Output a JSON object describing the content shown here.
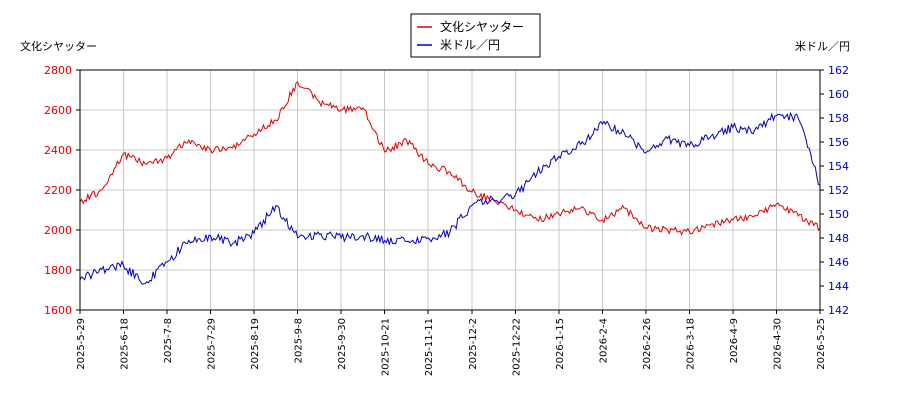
{
  "chart_data": {
    "type": "line",
    "left_axis_label": "文化シヤッター",
    "right_axis_label": "米ドル／円",
    "colors": {
      "left": "#dd0000",
      "right": "#0000bb"
    },
    "y_left": {
      "min": 1600,
      "max": 2800,
      "ticks": [
        "1600",
        "1800",
        "2000",
        "2200",
        "2400",
        "2600",
        "2800"
      ]
    },
    "y_right": {
      "min": 142,
      "max": 162,
      "ticks": [
        "142",
        "144",
        "146",
        "148",
        "150",
        "152",
        "154",
        "156",
        "158",
        "160",
        "162"
      ]
    },
    "x_tick_labels": [
      "2025-5-29",
      "2025-6-18",
      "2025-7-8",
      "2025-7-29",
      "2025-8-19",
      "2025-9-8",
      "2025-9-30",
      "2025-10-21",
      "2025-11-11",
      "2025-12-2",
      "2025-12-22",
      "2026-1-15",
      "2026-2-4",
      "2026-2-26",
      "2026-3-18",
      "2026-4-9",
      "2026-4-30",
      "2026-5-25"
    ],
    "legend": [
      {
        "name": "文化シヤッター",
        "color": "#dd0000"
      },
      {
        "name": "米ドル／円",
        "color": "#0000bb"
      }
    ],
    "series": [
      {
        "name": "文化シヤッター",
        "axis": "left",
        "x": [
          0,
          0.5,
          1,
          1.5,
          2,
          2.5,
          3,
          3.5,
          4,
          4.5,
          5,
          5.5,
          6,
          6.5,
          7,
          7.5,
          8,
          8.5,
          9,
          9.5,
          10,
          10.5,
          11,
          11.5,
          12,
          12.5,
          13,
          13.5,
          14,
          14.5,
          15,
          15.5,
          16,
          16.5,
          17
        ],
        "values": [
          2140,
          2200,
          2380,
          2330,
          2360,
          2450,
          2400,
          2410,
          2480,
          2550,
          2740,
          2640,
          2600,
          2610,
          2390,
          2450,
          2330,
          2290,
          2190,
          2150,
          2100,
          2050,
          2080,
          2110,
          2050,
          2110,
          2010,
          2000,
          1990,
          2030,
          2050,
          2070,
          2130,
          2070,
          2010
        ]
      },
      {
        "name": "米ドル／円",
        "axis": "right",
        "x": [
          0,
          0.5,
          1,
          1.5,
          2,
          2.5,
          3,
          3.5,
          4,
          4.5,
          5,
          5.5,
          6,
          6.5,
          7,
          7.5,
          8,
          8.5,
          9,
          9.5,
          10,
          10.5,
          11,
          11.5,
          12,
          12.5,
          13,
          13.5,
          14,
          14.5,
          15,
          15.5,
          16,
          16.5,
          17
        ],
        "values": [
          144.5,
          145.4,
          145.7,
          144.2,
          146.0,
          147.8,
          148.2,
          147.5,
          148.4,
          150.7,
          148.0,
          148.3,
          148.0,
          148.2,
          147.8,
          147.7,
          148.0,
          148.5,
          150.7,
          151.2,
          151.6,
          153.4,
          154.8,
          155.8,
          157.5,
          156.8,
          155.1,
          156.3,
          155.7,
          156.5,
          157.2,
          157.0,
          158.2,
          158.0,
          152.4
        ]
      }
    ]
  }
}
